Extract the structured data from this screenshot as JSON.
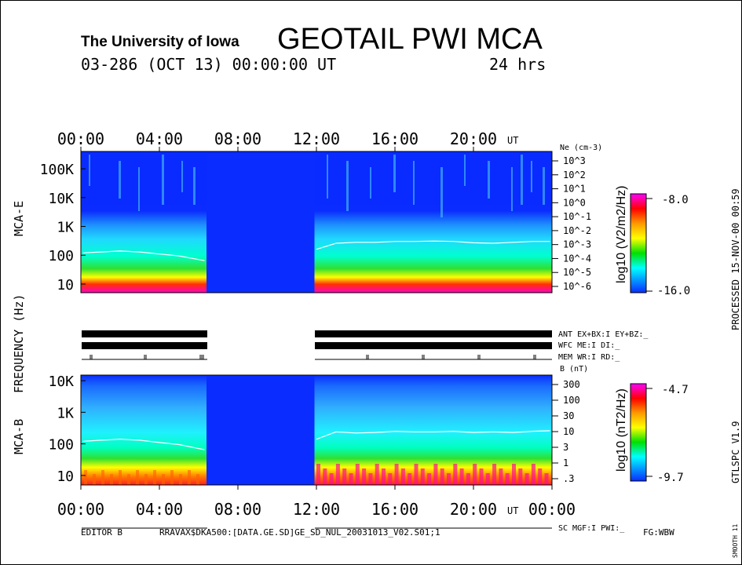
{
  "header": {
    "institution": "The University of Iowa",
    "title": "GEOTAIL PWI MCA",
    "date_line": "03-286 (OCT 13) 00:00:00 UT",
    "span": "24 hrs"
  },
  "time_axis": {
    "tick_labels": [
      "00:00",
      "04:00",
      "08:00",
      "12:00",
      "16:00",
      "20:00"
    ],
    "bottom_tick_labels": [
      "00:00",
      "04:00",
      "08:00",
      "12:00",
      "16:00",
      "20:00",
      "00:00"
    ],
    "unit": "UT",
    "range_hours": [
      0,
      24
    ]
  },
  "left_labels": {
    "frequency": "FREQUENCY (Hz)",
    "mca_e": "MCA-E",
    "mca_b": "MCA-B"
  },
  "status_rows": {
    "ant": "ANT EX+BX:I EY+BZ:_",
    "wfc": "WFC ME:I   DI:_",
    "mem": "MEM WR:I   RD:_",
    "sc": "SC MGF:I   PWI:_"
  },
  "right_margin": {
    "processed": "PROCESSED 15-NOV-00  00:59",
    "program": "GTLSPC  V1.9",
    "smooth": "SMOOTH 11"
  },
  "footer": {
    "editor": "EDITOR B",
    "file": "RRAVAX$DKA500:[DATA.GE.SD]GE_SD_NUL_20031013_V02.S01;1",
    "flags": "FG:WBW"
  },
  "colors": {
    "blue": "#0a2cff",
    "cyan": "#00ffff",
    "green": "#00e000",
    "yellow": "#ffff00",
    "orange": "#ff8c00",
    "red": "#ff0000",
    "magenta": "#ff00ff"
  },
  "chart_data": [
    {
      "type": "heatmap",
      "name": "MCA-E",
      "ylabel": "FREQUENCY (Hz)",
      "yticks": [
        "100K",
        "10K",
        "1K",
        "100",
        "10"
      ],
      "y_scale": "log",
      "yrange_hz": [
        5,
        400000
      ],
      "right_axis_label": "Ne (cm-3)",
      "right_ticks": [
        "10^3",
        "10^2",
        "10^1",
        "10^0",
        "10^-1",
        "10^-2",
        "10^-3",
        "10^-4",
        "10^-5",
        "10^-6"
      ],
      "colorbar": {
        "label": "log10 (V2/m2/Hz)",
        "max": "-8.0",
        "min": "-16.0"
      },
      "data_gap_hours": [
        6.4,
        11.9
      ],
      "density_trace": {
        "hours": [
          0.1,
          1.0,
          2.0,
          3.0,
          4.0,
          5.0,
          6.3,
          12.0,
          13.0,
          14.0,
          15.0,
          16.0,
          17.0,
          18.0,
          19.0,
          20.0,
          21.0,
          22.0,
          23.0,
          23.9
        ],
        "freq_hz": [
          120,
          130,
          140,
          130,
          110,
          95,
          65,
          160,
          260,
          280,
          280,
          300,
          300,
          310,
          300,
          270,
          260,
          280,
          300,
          300
        ]
      }
    },
    {
      "type": "heatmap",
      "name": "MCA-B",
      "ylabel": "FREQUENCY (Hz)",
      "yticks": [
        "10K",
        "1K",
        "100",
        "10"
      ],
      "y_scale": "log",
      "yrange_hz": [
        5,
        15000
      ],
      "right_axis_label": "B (nT)",
      "right_ticks": [
        "300",
        "100",
        "30",
        "10",
        "3",
        "1",
        ".3"
      ],
      "colorbar": {
        "label": "log10 (nT2/Hz)",
        "max": "-4.7",
        "min": "-9.7"
      },
      "data_gap_hours": [
        6.4,
        11.9
      ],
      "field_trace": {
        "hours": [
          0.1,
          1.0,
          2.0,
          3.0,
          4.0,
          5.0,
          6.3,
          12.0,
          13.0,
          14.0,
          15.0,
          16.0,
          17.0,
          18.0,
          19.0,
          20.0,
          21.0,
          22.0,
          23.0,
          23.9
        ],
        "freq_hz": [
          120,
          130,
          140,
          130,
          110,
          95,
          65,
          140,
          240,
          220,
          230,
          250,
          240,
          240,
          250,
          230,
          240,
          230,
          250,
          260
        ]
      }
    }
  ]
}
